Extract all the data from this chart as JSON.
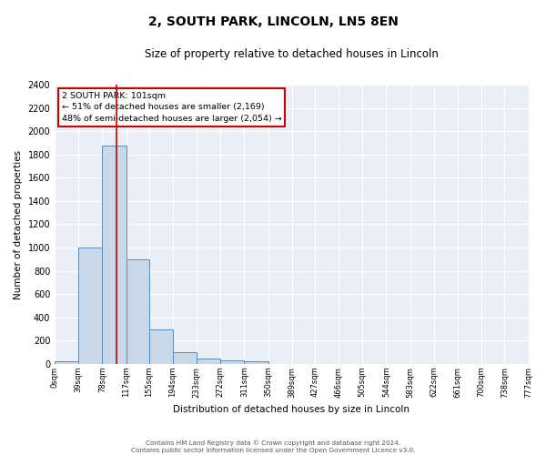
{
  "title": "2, SOUTH PARK, LINCOLN, LN5 8EN",
  "subtitle": "Size of property relative to detached houses in Lincoln",
  "xlabel": "Distribution of detached houses by size in Lincoln",
  "ylabel": "Number of detached properties",
  "annotation_title": "2 SOUTH PARK: 101sqm",
  "annotation_line2": "← 51% of detached houses are smaller (2,169)",
  "annotation_line3": "48% of semi-detached houses are larger (2,054) →",
  "bin_edges": [
    0,
    39,
    78,
    117,
    155,
    194,
    233,
    272,
    311,
    350,
    389,
    427,
    466,
    505,
    544,
    583,
    622,
    661,
    700,
    738,
    777
  ],
  "bin_counts": [
    20,
    1000,
    1880,
    900,
    300,
    100,
    45,
    30,
    25,
    0,
    0,
    0,
    0,
    0,
    0,
    0,
    0,
    0,
    0,
    0
  ],
  "tick_labels": [
    "0sqm",
    "39sqm",
    "78sqm",
    "117sqm",
    "155sqm",
    "194sqm",
    "233sqm",
    "272sqm",
    "311sqm",
    "350sqm",
    "389sqm",
    "427sqm",
    "466sqm",
    "505sqm",
    "544sqm",
    "583sqm",
    "622sqm",
    "661sqm",
    "700sqm",
    "738sqm",
    "777sqm"
  ],
  "bar_color": "#c8d8e8",
  "bar_edge_color": "#5b8db8",
  "vline_color": "#cc0000",
  "vline_x": 101,
  "annotation_box_color": "#cc0000",
  "background_color": "#eaeff7",
  "grid_color": "#ffffff",
  "ylim": [
    0,
    2400
  ],
  "yticks": [
    0,
    200,
    400,
    600,
    800,
    1000,
    1200,
    1400,
    1600,
    1800,
    2000,
    2200,
    2400
  ],
  "footer_line1": "Contains HM Land Registry data © Crown copyright and database right 2024.",
  "footer_line2": "Contains public sector information licensed under the Open Government Licence v3.0."
}
